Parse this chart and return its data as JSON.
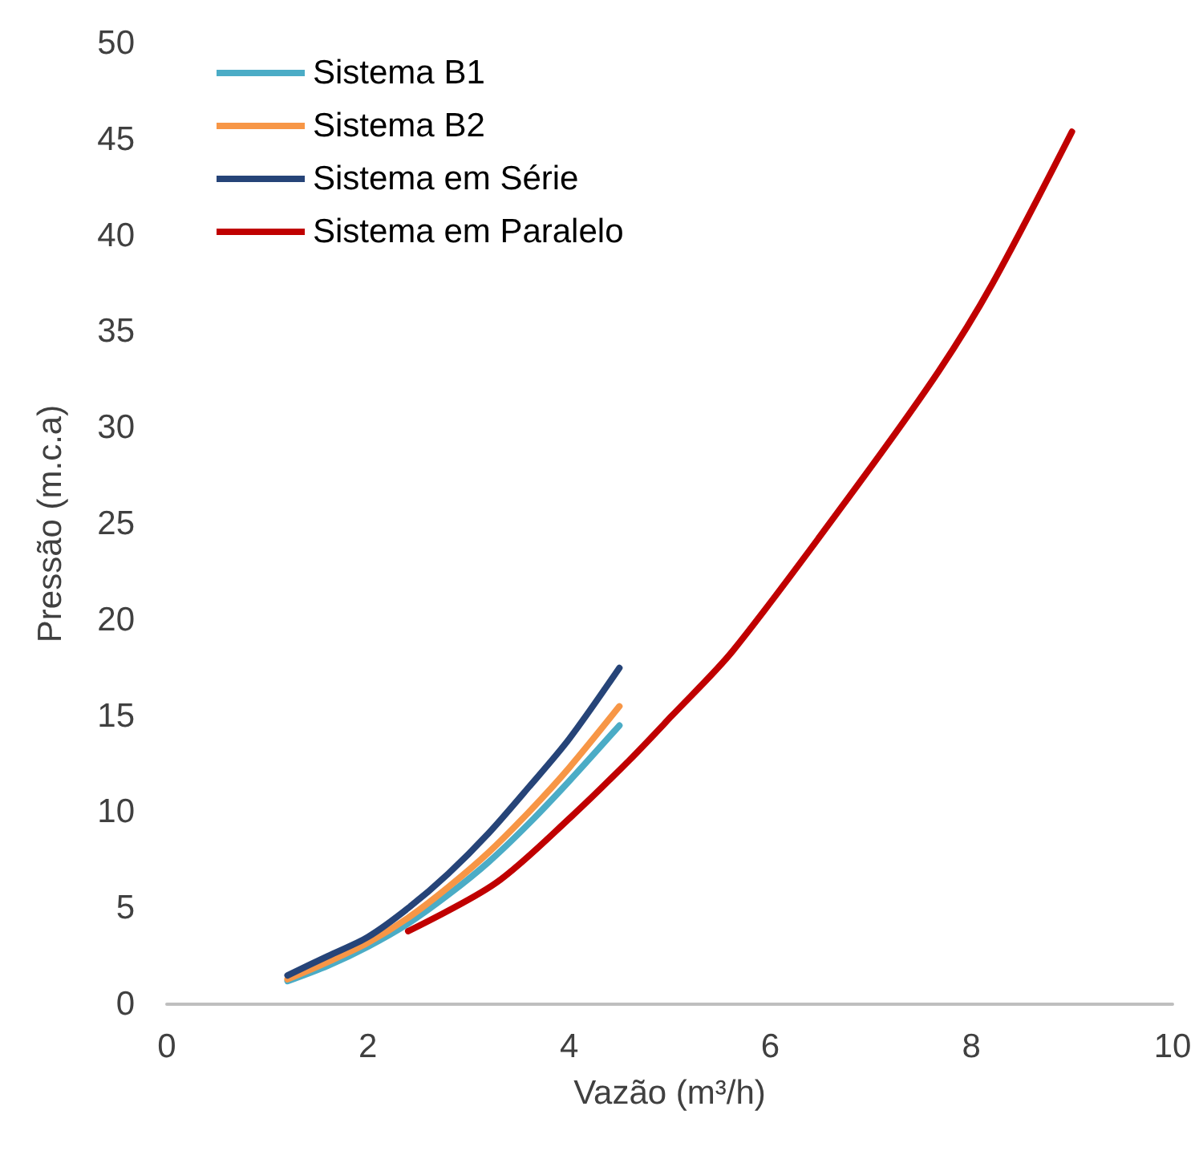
{
  "chart_data": {
    "type": "line",
    "xlabel": "Vazão (m³/h)",
    "ylabel": "Pressão (m.c.a)",
    "xlim": [
      0,
      10
    ],
    "xticks": [
      0,
      2,
      4,
      6,
      8,
      10
    ],
    "ylim": [
      0,
      50
    ],
    "yticks": [
      0,
      5,
      10,
      15,
      20,
      25,
      30,
      35,
      40,
      45,
      50
    ],
    "grid": false,
    "legend": "top left",
    "marker": "none",
    "line_style": "solid",
    "series": [
      {
        "name": "Sistema B1",
        "color": "#4bacc6",
        "x": [
          1.2,
          1.6,
          2,
          2.4,
          2.8,
          3.2,
          3.6,
          4,
          4.5
        ],
        "values": [
          1.2,
          2.0,
          3.0,
          4.2,
          5.7,
          7.4,
          9.4,
          11.6,
          14.5
        ]
      },
      {
        "name": "Sistema B2",
        "color": "#f79646",
        "x": [
          1.2,
          1.6,
          2,
          2.4,
          2.8,
          3.2,
          3.6,
          4,
          4.5
        ],
        "values": [
          1.3,
          2.2,
          3.2,
          4.5,
          6.1,
          7.9,
          10.0,
          12.3,
          15.5
        ]
      },
      {
        "name": "Sistema em Série",
        "color": "#264478",
        "x": [
          1.2,
          1.6,
          2,
          2.4,
          2.8,
          3.2,
          3.6,
          4,
          4.5
        ],
        "values": [
          1.5,
          2.5,
          3.5,
          5.0,
          6.8,
          8.9,
          11.3,
          13.8,
          17.5
        ]
      },
      {
        "name": "Sistema em Paralelo",
        "color": "#c00000",
        "x": [
          2.4,
          3.27,
          4.03,
          4.6,
          5.02,
          5.63,
          6.84,
          7.67,
          8.21,
          9.0
        ],
        "values": [
          3.8,
          6.3,
          9.8,
          12.7,
          15.0,
          18.4,
          26.8,
          32.9,
          37.5,
          45.4
        ]
      }
    ]
  }
}
